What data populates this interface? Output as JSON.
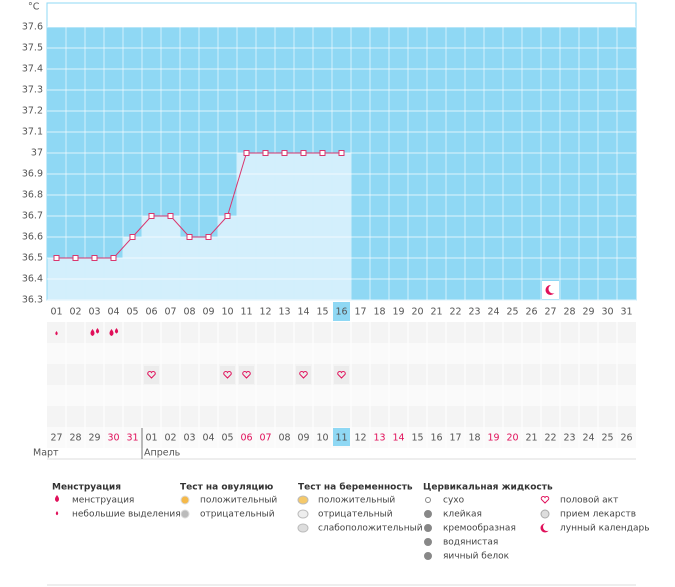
{
  "chart_data": {
    "type": "line",
    "y_label": "°C",
    "categories": [
      "01",
      "02",
      "03",
      "04",
      "05",
      "06",
      "07",
      "08",
      "09",
      "10",
      "11",
      "12",
      "13",
      "14",
      "15",
      "16",
      "17",
      "18",
      "19",
      "20",
      "21",
      "22",
      "23",
      "24",
      "25",
      "26",
      "27",
      "28",
      "29",
      "30",
      "31"
    ],
    "series": [
      {
        "name": "temperature",
        "color": "#d9366e",
        "values": [
          36.5,
          36.5,
          36.5,
          36.5,
          36.6,
          36.7,
          36.7,
          36.6,
          36.6,
          36.7,
          37,
          37,
          37,
          37,
          37,
          37,
          null,
          null,
          null,
          null,
          null,
          null,
          null,
          null,
          null,
          null,
          null,
          null,
          null,
          null,
          null
        ]
      }
    ],
    "ylim": [
      36.3,
      37.7
    ],
    "yticks": [
      36.3,
      36.4,
      36.5,
      36.6,
      36.7,
      36.8,
      36.9,
      37,
      37.1,
      37.2,
      37.3,
      37.4,
      37.5,
      37.6
    ],
    "current_day": "16",
    "dates": [
      "27",
      "28",
      "29",
      "30",
      "31",
      "01",
      "02",
      "03",
      "04",
      "05",
      "06",
      "07",
      "08",
      "09",
      "10",
      "11",
      "12",
      "13",
      "14",
      "15",
      "16",
      "17",
      "18",
      "19",
      "20",
      "21",
      "22",
      "23",
      "24",
      "25",
      "26"
    ],
    "date_colors": [
      "#555",
      "#555",
      "#555",
      "#e0105a",
      "#e0105a",
      "#555",
      "#555",
      "#555",
      "#555",
      "#555",
      "#e0105a",
      "#e0105a",
      "#555",
      "#555",
      "#555",
      "#555",
      "#555",
      "#e0105a",
      "#e0105a",
      "#555",
      "#555",
      "#555",
      "#555",
      "#e0105a",
      "#e0105a",
      "#555",
      "#555",
      "#555",
      "#555",
      "#555",
      "#555"
    ],
    "months": [
      {
        "label": "Март",
        "start": "27"
      },
      {
        "label": "Апрель",
        "start": "01"
      }
    ],
    "menstruation_days": [
      "03",
      "04"
    ],
    "spotting_days": [
      "01"
    ],
    "intercourse_days": [
      "06",
      "10",
      "11",
      "14",
      "16"
    ],
    "lunar_days": [
      "27"
    ]
  },
  "legend": [
    {
      "title": "Менструация",
      "items": [
        "менструация",
        "небольшие выделения"
      ]
    },
    {
      "title": "Тест на овуляцию",
      "items": [
        "положительный",
        "отрицательный"
      ]
    },
    {
      "title": "Тест на беременность",
      "items": [
        "положительный",
        "отрицательный",
        "слабоположительный"
      ]
    },
    {
      "title": "Цервикальная жидкость",
      "items": [
        "сухо",
        "клейкая",
        "кремообразная",
        "водянистая",
        "яичный белок"
      ]
    },
    {
      "items": [
        "половой акт",
        "прием лекарств",
        "лунный календарь"
      ]
    }
  ]
}
